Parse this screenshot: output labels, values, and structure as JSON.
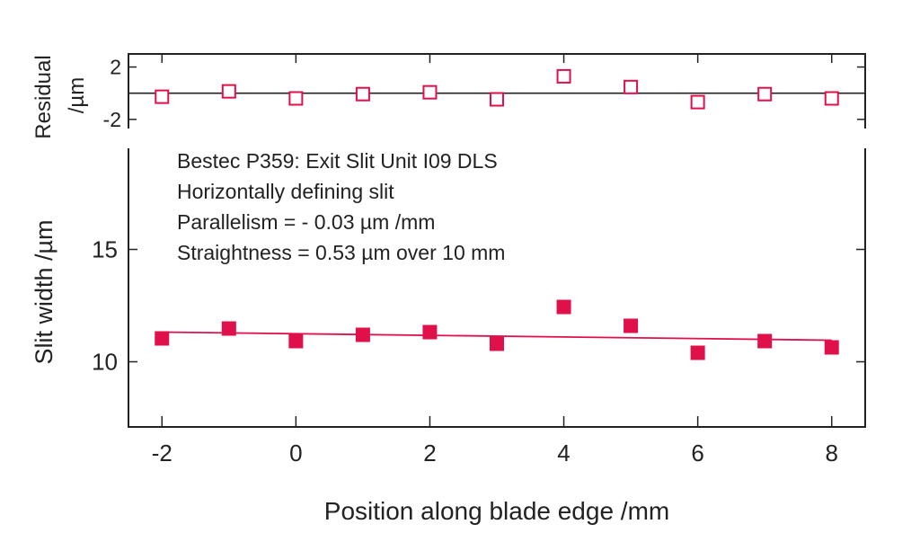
{
  "chart_data": [
    {
      "type": "scatter",
      "panel": "residual",
      "ylabel": "Residual\n/µm",
      "ylabel_lines": [
        "Residual",
        "/µm"
      ],
      "ylim": [
        -2.7,
        3.0
      ],
      "xlim": [
        -2.5,
        8.5
      ],
      "yticks": [
        2,
        -2
      ],
      "ytick_labels": [
        "2",
        "-2"
      ],
      "marker": "open-square",
      "zero_line": true,
      "x": [
        -2,
        -1,
        0,
        1,
        2,
        3,
        4,
        5,
        6,
        7,
        8
      ],
      "values": [
        -0.27,
        0.14,
        -0.4,
        -0.07,
        0.07,
        -0.47,
        1.29,
        0.47,
        -0.68,
        -0.07,
        -0.4
      ]
    },
    {
      "type": "scatter",
      "panel": "main",
      "xlabel": "Position along blade edge /mm",
      "ylabel": "Slit width /µm",
      "xlim": [
        -2.5,
        8.5
      ],
      "ylim": [
        7.1,
        19.5
      ],
      "xticks": [
        -2,
        0,
        2,
        4,
        6,
        8
      ],
      "xtick_labels": [
        "-2",
        "0",
        "2",
        "4",
        "6",
        "8"
      ],
      "yticks": [
        15,
        10
      ],
      "ytick_labels": [
        "15",
        "10"
      ],
      "marker": "filled-square",
      "x": [
        -2,
        -1,
        0,
        1,
        2,
        3,
        4,
        5,
        6,
        7,
        8
      ],
      "values": [
        11.04,
        11.48,
        10.92,
        11.2,
        11.32,
        10.8,
        12.44,
        11.6,
        10.4,
        10.92,
        10.64
      ],
      "fit_line": {
        "x": [
          -2,
          8
        ],
        "y": [
          11.32,
          10.96
        ]
      },
      "annotations": [
        "Bestec P359: Exit Slit Unit I09 DLS",
        "Horizontally defining slit",
        "Parallelism = - 0.03 µm /mm",
        "Straightness = 0.53 µm over 10 mm"
      ]
    }
  ],
  "colors": {
    "series": "#e0104a",
    "axis": "#222222"
  }
}
